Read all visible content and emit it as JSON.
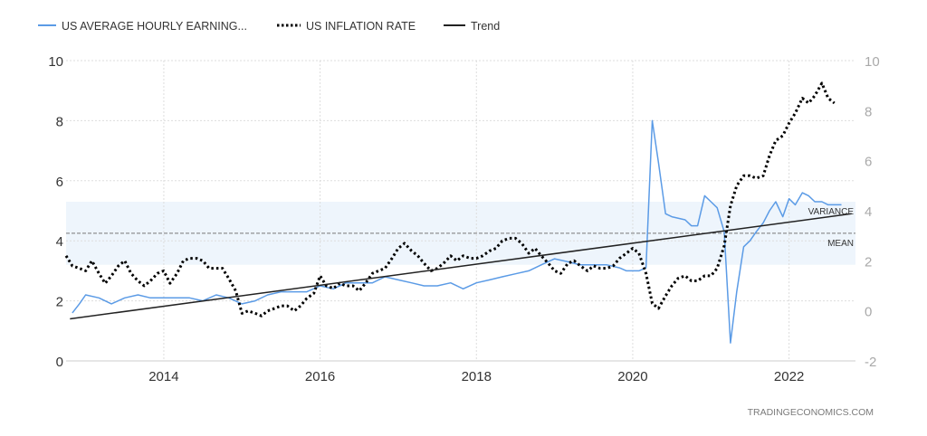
{
  "legend": [
    {
      "label": "US AVERAGE HOURLY EARNING...",
      "style": "solid",
      "color": "#5b9be6"
    },
    {
      "label": "US INFLATION RATE",
      "style": "dotted",
      "color": "#000000"
    },
    {
      "label": "Trend",
      "style": "solid",
      "color": "#222222"
    }
  ],
  "watermark": "TRADINGECONOMICS.COM",
  "annotations": {
    "variance": "VARIANCE",
    "mean": "MEAN"
  },
  "colors": {
    "earnings": "#5b9be6",
    "inflation": "#000000",
    "trend": "#222222",
    "band": "#eef5fc",
    "left_axis": "#333333",
    "right_axis": "#a9a9a9",
    "grid": "#dddddd"
  },
  "chart_data": {
    "type": "line",
    "title": "",
    "x_ticks": [
      "2014",
      "2016",
      "2018",
      "2020",
      "2022"
    ],
    "x_range": [
      2012.75,
      2022.85
    ],
    "left_axis": {
      "ticks": [
        0,
        2,
        4,
        6,
        8,
        10
      ],
      "range": [
        0,
        10
      ]
    },
    "right_axis": {
      "ticks": [
        -2,
        0,
        2,
        4,
        6,
        8,
        10
      ],
      "range": [
        -2,
        10
      ]
    },
    "grid": true,
    "legend_position": "top-left",
    "series": [
      {
        "name": "US AVERAGE HOURLY EARNING...",
        "axis": "left",
        "style": "solid",
        "points": [
          [
            2012.83,
            1.6
          ],
          [
            2012.92,
            1.9
          ],
          [
            2013.0,
            2.2
          ],
          [
            2013.17,
            2.1
          ],
          [
            2013.33,
            1.9
          ],
          [
            2013.5,
            2.1
          ],
          [
            2013.67,
            2.2
          ],
          [
            2013.83,
            2.1
          ],
          [
            2014.0,
            2.1
          ],
          [
            2014.17,
            2.1
          ],
          [
            2014.33,
            2.1
          ],
          [
            2014.5,
            2.0
          ],
          [
            2014.67,
            2.2
          ],
          [
            2014.83,
            2.1
          ],
          [
            2015.0,
            1.9
          ],
          [
            2015.17,
            2.0
          ],
          [
            2015.33,
            2.2
          ],
          [
            2015.5,
            2.3
          ],
          [
            2015.67,
            2.3
          ],
          [
            2015.83,
            2.3
          ],
          [
            2016.0,
            2.5
          ],
          [
            2016.17,
            2.4
          ],
          [
            2016.33,
            2.6
          ],
          [
            2016.5,
            2.6
          ],
          [
            2016.67,
            2.6
          ],
          [
            2016.83,
            2.8
          ],
          [
            2017.0,
            2.7
          ],
          [
            2017.17,
            2.6
          ],
          [
            2017.33,
            2.5
          ],
          [
            2017.5,
            2.5
          ],
          [
            2017.67,
            2.6
          ],
          [
            2017.83,
            2.4
          ],
          [
            2018.0,
            2.6
          ],
          [
            2018.17,
            2.7
          ],
          [
            2018.33,
            2.8
          ],
          [
            2018.5,
            2.9
          ],
          [
            2018.67,
            3.0
          ],
          [
            2018.83,
            3.2
          ],
          [
            2019.0,
            3.4
          ],
          [
            2019.17,
            3.3
          ],
          [
            2019.33,
            3.2
          ],
          [
            2019.5,
            3.2
          ],
          [
            2019.67,
            3.2
          ],
          [
            2019.83,
            3.1
          ],
          [
            2019.92,
            3.0
          ],
          [
            2020.0,
            3.0
          ],
          [
            2020.08,
            3.0
          ],
          [
            2020.17,
            3.1
          ],
          [
            2020.25,
            8.0
          ],
          [
            2020.33,
            6.6
          ],
          [
            2020.42,
            4.9
          ],
          [
            2020.5,
            4.8
          ],
          [
            2020.67,
            4.7
          ],
          [
            2020.75,
            4.5
          ],
          [
            2020.83,
            4.5
          ],
          [
            2020.92,
            5.5
          ],
          [
            2021.0,
            5.3
          ],
          [
            2021.08,
            5.1
          ],
          [
            2021.17,
            4.3
          ],
          [
            2021.25,
            0.6
          ],
          [
            2021.33,
            2.3
          ],
          [
            2021.42,
            3.8
          ],
          [
            2021.5,
            4.0
          ],
          [
            2021.58,
            4.3
          ],
          [
            2021.67,
            4.6
          ],
          [
            2021.75,
            5.0
          ],
          [
            2021.83,
            5.3
          ],
          [
            2021.92,
            4.8
          ],
          [
            2022.0,
            5.4
          ],
          [
            2022.08,
            5.2
          ],
          [
            2022.17,
            5.6
          ],
          [
            2022.25,
            5.5
          ],
          [
            2022.33,
            5.3
          ],
          [
            2022.42,
            5.3
          ],
          [
            2022.5,
            5.2
          ],
          [
            2022.58,
            5.2
          ],
          [
            2022.67,
            5.2
          ]
        ]
      },
      {
        "name": "US INFLATION RATE",
        "axis": "right",
        "style": "dotted",
        "points": [
          [
            2012.75,
            2.2
          ],
          [
            2012.83,
            1.8
          ],
          [
            2012.92,
            1.7
          ],
          [
            2013.0,
            1.6
          ],
          [
            2013.08,
            2.0
          ],
          [
            2013.17,
            1.5
          ],
          [
            2013.25,
            1.1
          ],
          [
            2013.33,
            1.4
          ],
          [
            2013.42,
            1.8
          ],
          [
            2013.5,
            2.0
          ],
          [
            2013.58,
            1.5
          ],
          [
            2013.67,
            1.2
          ],
          [
            2013.75,
            1.0
          ],
          [
            2013.83,
            1.2
          ],
          [
            2013.92,
            1.5
          ],
          [
            2014.0,
            1.6
          ],
          [
            2014.08,
            1.1
          ],
          [
            2014.17,
            1.5
          ],
          [
            2014.25,
            2.0
          ],
          [
            2014.33,
            2.1
          ],
          [
            2014.42,
            2.1
          ],
          [
            2014.5,
            2.0
          ],
          [
            2014.58,
            1.7
          ],
          [
            2014.67,
            1.7
          ],
          [
            2014.75,
            1.7
          ],
          [
            2014.83,
            1.3
          ],
          [
            2014.92,
            0.8
          ],
          [
            2015.0,
            -0.1
          ],
          [
            2015.08,
            0.0
          ],
          [
            2015.17,
            -0.1
          ],
          [
            2015.25,
            -0.2
          ],
          [
            2015.33,
            0.0
          ],
          [
            2015.42,
            0.1
          ],
          [
            2015.5,
            0.2
          ],
          [
            2015.58,
            0.2
          ],
          [
            2015.67,
            0.0
          ],
          [
            2015.75,
            0.2
          ],
          [
            2015.83,
            0.5
          ],
          [
            2015.92,
            0.7
          ],
          [
            2016.0,
            1.4
          ],
          [
            2016.08,
            1.0
          ],
          [
            2016.17,
            0.9
          ],
          [
            2016.25,
            1.1
          ],
          [
            2016.33,
            1.0
          ],
          [
            2016.42,
            1.0
          ],
          [
            2016.5,
            0.8
          ],
          [
            2016.58,
            1.1
          ],
          [
            2016.67,
            1.5
          ],
          [
            2016.75,
            1.6
          ],
          [
            2016.83,
            1.7
          ],
          [
            2016.92,
            2.1
          ],
          [
            2017.0,
            2.5
          ],
          [
            2017.08,
            2.7
          ],
          [
            2017.17,
            2.4
          ],
          [
            2017.25,
            2.2
          ],
          [
            2017.33,
            1.9
          ],
          [
            2017.42,
            1.6
          ],
          [
            2017.5,
            1.7
          ],
          [
            2017.58,
            1.9
          ],
          [
            2017.67,
            2.2
          ],
          [
            2017.75,
            2.0
          ],
          [
            2017.83,
            2.2
          ],
          [
            2017.92,
            2.1
          ],
          [
            2018.0,
            2.1
          ],
          [
            2018.08,
            2.2
          ],
          [
            2018.17,
            2.4
          ],
          [
            2018.25,
            2.5
          ],
          [
            2018.33,
            2.8
          ],
          [
            2018.42,
            2.9
          ],
          [
            2018.5,
            2.9
          ],
          [
            2018.58,
            2.7
          ],
          [
            2018.67,
            2.3
          ],
          [
            2018.75,
            2.5
          ],
          [
            2018.83,
            2.2
          ],
          [
            2018.92,
            1.9
          ],
          [
            2019.0,
            1.6
          ],
          [
            2019.08,
            1.5
          ],
          [
            2019.17,
            1.9
          ],
          [
            2019.25,
            2.0
          ],
          [
            2019.33,
            1.8
          ],
          [
            2019.42,
            1.6
          ],
          [
            2019.5,
            1.8
          ],
          [
            2019.58,
            1.7
          ],
          [
            2019.67,
            1.7
          ],
          [
            2019.75,
            1.8
          ],
          [
            2019.83,
            2.1
          ],
          [
            2019.92,
            2.3
          ],
          [
            2020.0,
            2.5
          ],
          [
            2020.08,
            2.3
          ],
          [
            2020.17,
            1.5
          ],
          [
            2020.25,
            0.3
          ],
          [
            2020.33,
            0.1
          ],
          [
            2020.42,
            0.6
          ],
          [
            2020.5,
            1.0
          ],
          [
            2020.58,
            1.3
          ],
          [
            2020.67,
            1.4
          ],
          [
            2020.75,
            1.2
          ],
          [
            2020.83,
            1.2
          ],
          [
            2020.92,
            1.4
          ],
          [
            2021.0,
            1.4
          ],
          [
            2021.08,
            1.7
          ],
          [
            2021.17,
            2.6
          ],
          [
            2021.25,
            4.2
          ],
          [
            2021.33,
            5.0
          ],
          [
            2021.42,
            5.4
          ],
          [
            2021.5,
            5.4
          ],
          [
            2021.58,
            5.3
          ],
          [
            2021.67,
            5.4
          ],
          [
            2021.75,
            6.2
          ],
          [
            2021.83,
            6.8
          ],
          [
            2021.92,
            7.0
          ],
          [
            2022.0,
            7.5
          ],
          [
            2022.08,
            7.9
          ],
          [
            2022.17,
            8.5
          ],
          [
            2022.25,
            8.3
          ],
          [
            2022.33,
            8.6
          ],
          [
            2022.42,
            9.1
          ],
          [
            2022.5,
            8.5
          ],
          [
            2022.58,
            8.3
          ]
        ]
      },
      {
        "name": "Trend",
        "axis": "left",
        "style": "solid",
        "points": [
          [
            2012.8,
            1.4
          ],
          [
            2022.8,
            4.9
          ]
        ]
      }
    ],
    "bands": {
      "axis": "left",
      "range": [
        3.2,
        5.3
      ],
      "mean": 4.25
    }
  }
}
